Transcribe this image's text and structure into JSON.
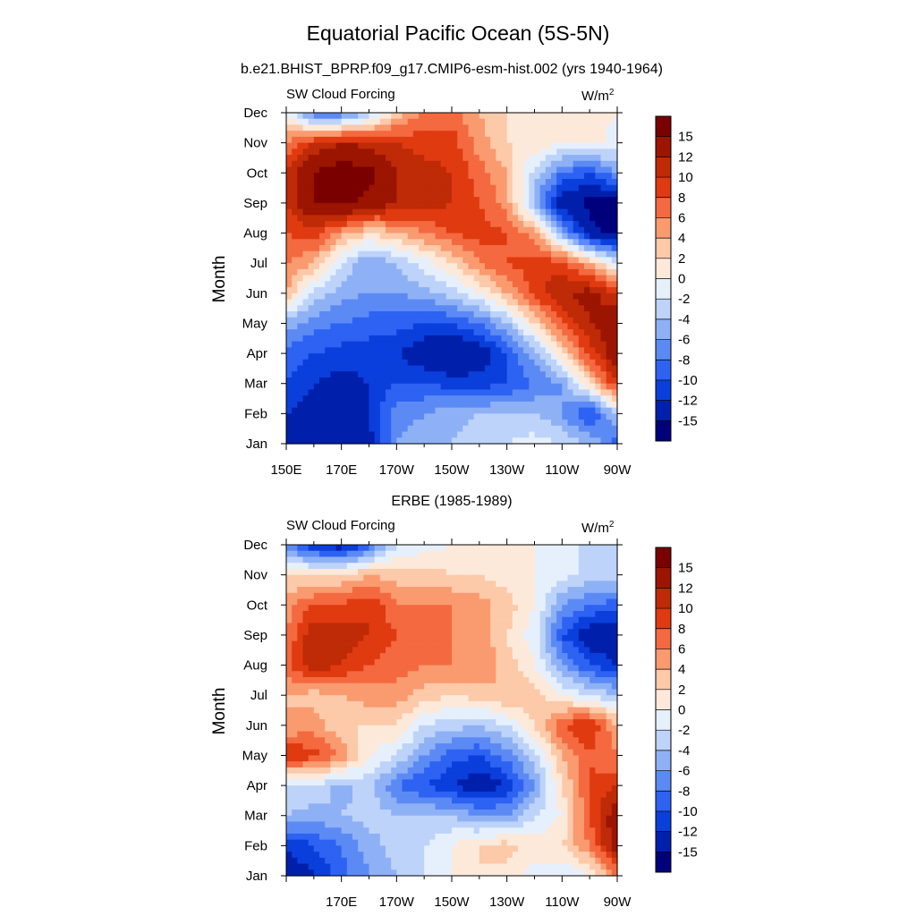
{
  "figure": {
    "title": "Equatorial Pacific Ocean (5S-5N)",
    "panel1_header": "b.e21.BHIST_BPRP.f09_g17.CMIP6-esm-hist.002 (yrs 1940-1964)",
    "panel2_header": "ERBE (1985-1989)"
  },
  "colors": {
    "palette": [
      "#00007d",
      "#0020ac",
      "#0a3fdc",
      "#2d62f2",
      "#5c8af5",
      "#8eb1f6",
      "#bdd3f9",
      "#e6f0fd",
      "#fde9da",
      "#fcc9a9",
      "#fa9a6f",
      "#f4693f",
      "#e03a10",
      "#bf2a07",
      "#9b1500",
      "#7a0000"
    ]
  },
  "chart_data": [
    {
      "type": "heatmap",
      "left_title": "SW Cloud Forcing",
      "units_base": "W/m",
      "units_exp": "2",
      "ylabel": "Month",
      "x_ticks": [
        "150E",
        "170E",
        "170W",
        "150W",
        "130W",
        "110W",
        "90W"
      ],
      "x_range_deg_lon": [
        150,
        270
      ],
      "y_ticks": [
        "Jan",
        "Feb",
        "Mar",
        "Apr",
        "May",
        "Jun",
        "Jul",
        "Aug",
        "Sep",
        "Oct",
        "Nov",
        "Dec"
      ],
      "colorbar_labels": [
        "15",
        "12",
        "10",
        "8",
        "6",
        "4",
        "2",
        "0",
        "-2",
        "-4",
        "-6",
        "-8",
        "-10",
        "-12",
        "-15"
      ],
      "lon": [
        150,
        160,
        170,
        180,
        190,
        200,
        210,
        220,
        230,
        240,
        250,
        260,
        270
      ],
      "grid": [
        [
          -13,
          -14,
          -15,
          -13,
          -6,
          -5,
          -4,
          -3,
          -2,
          -1,
          -2,
          -4,
          -9
        ],
        [
          -12,
          -13,
          -14,
          -12,
          -7,
          -6,
          -5,
          -4,
          -4,
          -4,
          -6,
          -11,
          -3
        ],
        [
          -10,
          -12,
          -13,
          -12,
          -10,
          -10,
          -11,
          -11,
          -10,
          -8,
          -6,
          2,
          10
        ],
        [
          -9,
          -10,
          -11,
          -11,
          -12,
          -14,
          -15,
          -14,
          -10,
          -5,
          2,
          9,
          14
        ],
        [
          -5,
          -7,
          -8,
          -9,
          -9,
          -10,
          -10,
          -8,
          -4,
          2,
          8,
          12,
          14
        ],
        [
          4,
          -3,
          -5,
          -6,
          -6,
          -5,
          -3,
          0,
          4,
          9,
          12,
          13,
          10
        ],
        [
          6,
          4,
          -2,
          -6,
          -4,
          -1,
          2,
          6,
          8,
          9,
          9,
          4,
          -2
        ],
        [
          8,
          9,
          5,
          2,
          4,
          6,
          8,
          9,
          8,
          5,
          -5,
          -14,
          -16
        ],
        [
          10,
          15,
          16,
          14,
          12,
          11,
          10,
          8,
          5,
          -5,
          -14,
          -16,
          -16
        ],
        [
          10,
          15,
          17,
          16,
          12,
          11,
          10,
          7,
          4,
          -3,
          -8,
          -10,
          -6
        ],
        [
          6,
          10,
          12,
          11,
          10,
          9,
          9,
          5,
          2,
          2,
          0,
          1,
          -1
        ],
        [
          0,
          -8,
          -8,
          -4,
          3,
          6,
          7,
          4,
          2,
          1,
          2,
          1,
          0
        ]
      ]
    },
    {
      "type": "heatmap",
      "left_title": "SW Cloud Forcing",
      "units_base": "W/m",
      "units_exp": "2",
      "ylabel": "Month",
      "x_ticks": [
        "170E",
        "170W",
        "150W",
        "130W",
        "110W",
        "90W"
      ],
      "x_range_deg_lon": [
        150,
        270
      ],
      "y_ticks": [
        "Jan",
        "Feb",
        "Mar",
        "Apr",
        "May",
        "Jun",
        "Jul",
        "Aug",
        "Sep",
        "Oct",
        "Nov",
        "Dec"
      ],
      "colorbar_labels": [
        "15",
        "12",
        "10",
        "8",
        "6",
        "4",
        "2",
        "0",
        "-2",
        "-4",
        "-6",
        "-8",
        "-10",
        "-12",
        "-15"
      ],
      "lon": [
        150,
        160,
        170,
        180,
        190,
        200,
        210,
        220,
        230,
        240,
        250,
        260,
        270
      ],
      "grid": [
        [
          -14,
          -12,
          -9,
          -6,
          -4,
          -2,
          0,
          2,
          1,
          -1,
          -2,
          0,
          6
        ],
        [
          -12,
          -10,
          -8,
          -5,
          -3,
          -2,
          0,
          2,
          3,
          1,
          2,
          6,
          14
        ],
        [
          -4,
          -5,
          -4,
          -3,
          -4,
          -4,
          -4,
          -6,
          -6,
          -2,
          0,
          8,
          14
        ],
        [
          -2,
          -2,
          -5,
          -3,
          -8,
          -10,
          -12,
          -14,
          -12,
          -6,
          2,
          8,
          10
        ],
        [
          10,
          9,
          6,
          0,
          -2,
          -6,
          -9,
          -10,
          -7,
          -3,
          4,
          8,
          6
        ],
        [
          4,
          5,
          2,
          2,
          2,
          -2,
          -3,
          -4,
          -2,
          2,
          8,
          10,
          4
        ],
        [
          4,
          3,
          4,
          5,
          5,
          3,
          2,
          3,
          4,
          3,
          0,
          -2,
          -4
        ],
        [
          7,
          12,
          10,
          8,
          7,
          6,
          6,
          6,
          3,
          0,
          -6,
          -10,
          -12
        ],
        [
          6,
          12,
          11,
          10,
          8,
          7,
          6,
          5,
          2,
          -1,
          -10,
          -14,
          -14
        ],
        [
          5,
          8,
          8,
          10,
          6,
          6,
          6,
          5,
          3,
          0,
          -6,
          -8,
          -9
        ],
        [
          2,
          2,
          2,
          4,
          3,
          3,
          2,
          2,
          1,
          0,
          -1,
          -3,
          -3
        ],
        [
          -7,
          -12,
          -14,
          -9,
          -2,
          -1,
          0,
          0,
          0,
          0,
          -2,
          -2,
          -4
        ]
      ]
    }
  ]
}
